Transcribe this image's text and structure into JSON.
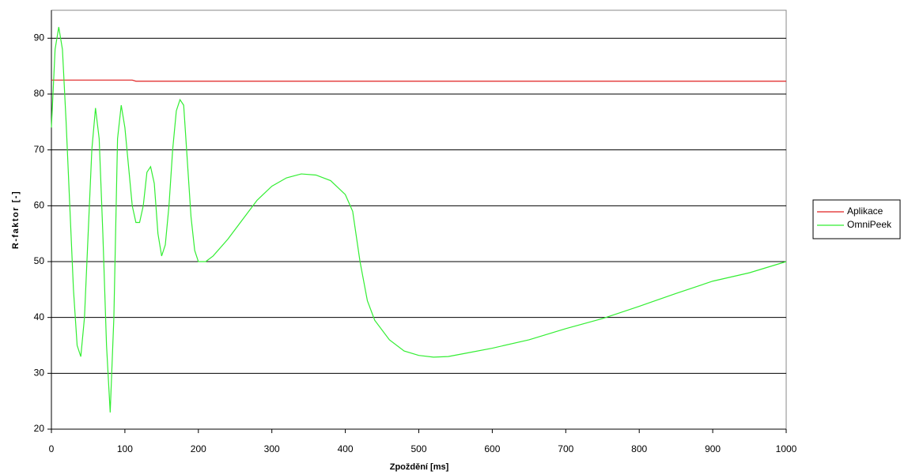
{
  "chart_data": {
    "type": "line",
    "xlabel": "Zpoždění [ms]",
    "ylabel": "R-faktor [-]",
    "xlim": [
      0,
      1000
    ],
    "xticks": [
      0,
      100,
      200,
      300,
      400,
      500,
      600,
      700,
      800,
      900,
      1000
    ],
    "ylim": [
      20,
      95
    ],
    "yticks": [
      20,
      30,
      40,
      50,
      60,
      70,
      80,
      90
    ],
    "grid": true,
    "legend": "right",
    "series": [
      {
        "name": "Aplikace",
        "color": "#e02020",
        "x": [
          0,
          110,
          115,
          1000
        ],
        "values": [
          82.5,
          82.5,
          82.3,
          82.3
        ]
      },
      {
        "name": "OmniPeek",
        "color": "#33ee33",
        "x": [
          0,
          5,
          10,
          15,
          20,
          25,
          30,
          35,
          40,
          45,
          50,
          55,
          60,
          65,
          70,
          75,
          80,
          85,
          90,
          95,
          100,
          105,
          110,
          115,
          120,
          125,
          130,
          135,
          140,
          145,
          150,
          155,
          160,
          165,
          170,
          175,
          180,
          185,
          190,
          195,
          200,
          210,
          220,
          240,
          260,
          280,
          300,
          320,
          340,
          360,
          380,
          400,
          410,
          420,
          430,
          440,
          460,
          480,
          500,
          520,
          540,
          560,
          600,
          650,
          700,
          750,
          800,
          850,
          900,
          950,
          1000
        ],
        "values": [
          74,
          88,
          92,
          88,
          75,
          60,
          45,
          35,
          33,
          40,
          55,
          70,
          77.5,
          72,
          55,
          35,
          23,
          40,
          72,
          78,
          74,
          67,
          60,
          57,
          57,
          60,
          66,
          67,
          64,
          55,
          51,
          53,
          60,
          70,
          77,
          79,
          78,
          68,
          58,
          52,
          50,
          50,
          51,
          54,
          57.5,
          61,
          63.5,
          65,
          65.7,
          65.5,
          64.5,
          62,
          59,
          50,
          43,
          39.5,
          36,
          34,
          33.2,
          32.9,
          33,
          33.5,
          34.5,
          36,
          38,
          39.8,
          42,
          44.3,
          46.5,
          48,
          50
        ]
      }
    ]
  }
}
